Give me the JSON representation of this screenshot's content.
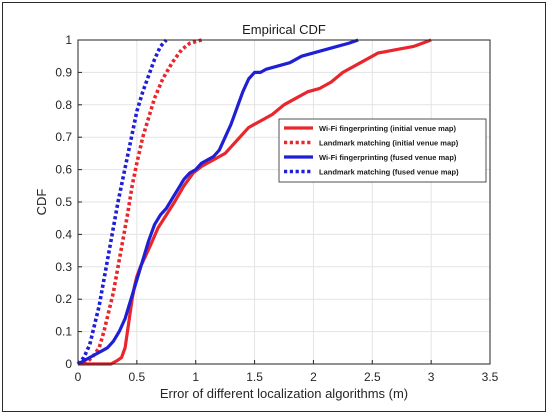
{
  "chart_data": {
    "type": "line",
    "title": "Empirical CDF",
    "xlabel": "Error of different localization algorithms (m)",
    "ylabel": "CDF",
    "xlim": [
      0,
      3.5
    ],
    "ylim": [
      0,
      1
    ],
    "xticks": [
      "0",
      "0.5",
      "1",
      "1.5",
      "2",
      "2.5",
      "3",
      "3.5"
    ],
    "yticks": [
      "0",
      "0.1",
      "0.2",
      "0.3",
      "0.4",
      "0.5",
      "0.6",
      "0.7",
      "0.8",
      "0.9",
      "1"
    ],
    "grid": true,
    "legend_position": "right",
    "series": [
      {
        "name": "Wi-Fi fingerprinting (initial venue map)",
        "color": "#e8262b",
        "style": "solid",
        "x": [
          0.0,
          0.28,
          0.33,
          0.37,
          0.4,
          0.42,
          0.44,
          0.46,
          0.48,
          0.5,
          0.53,
          0.57,
          0.62,
          0.68,
          0.75,
          0.82,
          0.9,
          0.98,
          1.05,
          1.15,
          1.25,
          1.35,
          1.45,
          1.55,
          1.65,
          1.75,
          1.85,
          1.95,
          2.05,
          2.15,
          2.25,
          2.4,
          2.55,
          2.7,
          2.85,
          3.0
        ],
        "y": [
          0.0,
          0.0,
          0.01,
          0.02,
          0.05,
          0.1,
          0.15,
          0.2,
          0.24,
          0.27,
          0.3,
          0.33,
          0.37,
          0.42,
          0.46,
          0.5,
          0.55,
          0.59,
          0.61,
          0.63,
          0.65,
          0.69,
          0.73,
          0.75,
          0.77,
          0.8,
          0.82,
          0.84,
          0.85,
          0.87,
          0.9,
          0.93,
          0.96,
          0.97,
          0.98,
          1.0
        ]
      },
      {
        "name": "Landmark matching (initial venue map)",
        "color": "#e8262b",
        "style": "dotted",
        "x": [
          0.05,
          0.12,
          0.18,
          0.22,
          0.26,
          0.3,
          0.34,
          0.38,
          0.42,
          0.46,
          0.5,
          0.55,
          0.6,
          0.65,
          0.72,
          0.8,
          0.88,
          0.95,
          1.05
        ],
        "y": [
          0.0,
          0.02,
          0.05,
          0.1,
          0.16,
          0.22,
          0.3,
          0.38,
          0.46,
          0.55,
          0.62,
          0.7,
          0.76,
          0.82,
          0.88,
          0.93,
          0.97,
          0.99,
          1.0
        ]
      },
      {
        "name": "Wi-Fi fingerprinting (fused venue map)",
        "color": "#1f1fd6",
        "style": "solid",
        "x": [
          0.0,
          0.05,
          0.1,
          0.15,
          0.2,
          0.25,
          0.3,
          0.35,
          0.4,
          0.45,
          0.5,
          0.55,
          0.6,
          0.65,
          0.7,
          0.75,
          0.8,
          0.85,
          0.9,
          0.95,
          1.0,
          1.05,
          1.1,
          1.15,
          1.2,
          1.25,
          1.3,
          1.35,
          1.4,
          1.45,
          1.5,
          1.55,
          1.6,
          1.7,
          1.8,
          1.9,
          2.0,
          2.1,
          2.2,
          2.3,
          2.38
        ],
        "y": [
          0.0,
          0.01,
          0.02,
          0.03,
          0.04,
          0.05,
          0.07,
          0.1,
          0.14,
          0.2,
          0.26,
          0.32,
          0.38,
          0.43,
          0.46,
          0.48,
          0.51,
          0.54,
          0.57,
          0.59,
          0.6,
          0.62,
          0.63,
          0.64,
          0.66,
          0.7,
          0.74,
          0.79,
          0.84,
          0.88,
          0.9,
          0.9,
          0.91,
          0.92,
          0.93,
          0.95,
          0.96,
          0.97,
          0.98,
          0.99,
          1.0
        ]
      },
      {
        "name": "Landmark matching (fused venue map)",
        "color": "#1f1fd6",
        "style": "dotted",
        "x": [
          0.0,
          0.05,
          0.1,
          0.14,
          0.18,
          0.22,
          0.26,
          0.3,
          0.34,
          0.38,
          0.42,
          0.46,
          0.5,
          0.55,
          0.6,
          0.65,
          0.7,
          0.75
        ],
        "y": [
          0.0,
          0.02,
          0.06,
          0.12,
          0.18,
          0.26,
          0.34,
          0.42,
          0.5,
          0.57,
          0.64,
          0.71,
          0.78,
          0.84,
          0.89,
          0.94,
          0.98,
          1.0
        ]
      }
    ]
  }
}
